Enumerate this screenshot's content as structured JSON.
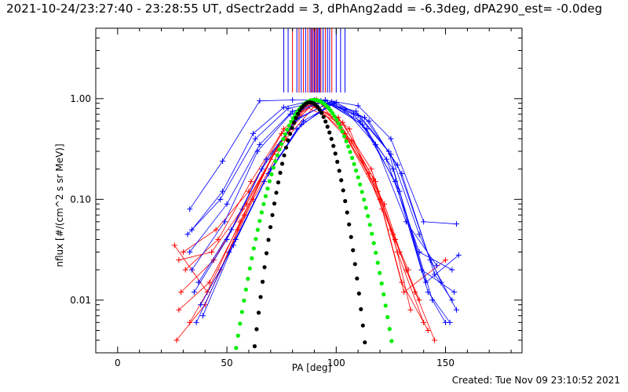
{
  "header": {
    "title": "2021-10-24/23:27:40 - 23:28:55 UT, dSectr2add = 3, dPhAng2add = -6.3deg, dPA290_est= -0.0deg"
  },
  "footer": {
    "created": "Created: Tue Nov 09 23:10:52 2021"
  },
  "chart_data": {
    "type": "scatter",
    "title": "2021-10-24/23:27:40 - 23:28:55 UT, dSectr2add = 3, dPhAng2add = -6.3deg, dPA290_est= -0.0deg",
    "xlabel": "PA [deg]",
    "ylabel": "nflux [#/(cm^2 s sr MeV)]",
    "xlim": [
      -10,
      185
    ],
    "ylim": [
      0.003,
      5.0
    ],
    "yscale": "log",
    "x_ticks": [
      0,
      50,
      100,
      150
    ],
    "x_tick_labels": [
      "0",
      "50",
      "100",
      "150"
    ],
    "y_ticks": [
      0.01,
      0.1,
      1.0
    ],
    "y_tick_labels": [
      "0.01",
      "0.10",
      "1.00"
    ],
    "grid": false,
    "colors": {
      "red": "#ff0000",
      "blue": "#0000ff",
      "green": "#00ee00",
      "black": "#000000"
    },
    "series": [
      {
        "color": "red",
        "style": "lines+plus",
        "curves": [
          {
            "x": [
              27,
              40,
              55,
              70,
              85,
              100,
              115,
              125,
              133
            ],
            "y": [
              0.004,
              0.009,
              0.05,
              0.25,
              0.85,
              0.6,
              0.18,
              0.05,
              0.02
            ]
          },
          {
            "x": [
              28,
              42,
              58,
              72,
              88,
              102,
              118,
              128,
              140
            ],
            "y": [
              0.008,
              0.015,
              0.07,
              0.3,
              0.95,
              0.55,
              0.15,
              0.03,
              0.006
            ]
          },
          {
            "x": [
              30,
              45,
              60,
              75,
              90,
              105,
              120,
              130,
              142
            ],
            "y": [
              0.03,
              0.05,
              0.12,
              0.45,
              0.9,
              0.4,
              0.1,
              0.015,
              0.005
            ]
          },
          {
            "x": [
              29,
              44,
              59,
              74,
              89,
              104,
              119,
              129,
              138
            ],
            "y": [
              0.012,
              0.025,
              0.09,
              0.35,
              0.92,
              0.45,
              0.12,
              0.03,
              0.01
            ]
          },
          {
            "x": [
              31,
              46,
              61,
              76,
              91,
              106,
              121,
              131,
              150
            ],
            "y": [
              0.02,
              0.04,
              0.15,
              0.5,
              0.98,
              0.5,
              0.08,
              0.012,
              0.025
            ]
          },
          {
            "x": [
              26,
              41,
              56,
              71,
              86,
              101,
              116,
              126,
              134
            ],
            "y": [
              0.035,
              0.012,
              0.06,
              0.28,
              0.88,
              0.65,
              0.2,
              0.045,
              0.008
            ]
          },
          {
            "x": [
              33,
              47,
              62,
              77,
              92,
              107,
              122,
              132,
              145
            ],
            "y": [
              0.006,
              0.02,
              0.1,
              0.4,
              0.94,
              0.38,
              0.09,
              0.02,
              0.004
            ]
          },
          {
            "x": [
              28,
              43,
              57,
              73,
              87,
              103,
              117,
              127,
              136
            ],
            "y": [
              0.025,
              0.03,
              0.08,
              0.32,
              0.9,
              0.58,
              0.16,
              0.04,
              0.012
            ]
          }
        ]
      },
      {
        "color": "blue",
        "style": "lines+plus",
        "curves": [
          {
            "x": [
              33,
              48,
              65,
              80,
              95,
              110,
              125,
              140,
              155
            ],
            "y": [
              0.08,
              0.24,
              0.95,
              0.97,
              0.97,
              0.85,
              0.4,
              0.06,
              0.057
            ]
          },
          {
            "x": [
              32,
              47,
              63,
              78,
              93,
              108,
              123,
              138,
              153
            ],
            "y": [
              0.045,
              0.1,
              0.4,
              0.8,
              0.95,
              0.7,
              0.25,
              0.03,
              0.02
            ]
          },
          {
            "x": [
              34,
              49,
              64,
              79,
              94,
              109,
              124,
              139,
              154
            ],
            "y": [
              0.02,
              0.06,
              0.3,
              0.7,
              0.92,
              0.75,
              0.3,
              0.02,
              0.012
            ]
          },
          {
            "x": [
              35,
              50,
              66,
              81,
              96,
              111,
              126,
              141,
              156
            ],
            "y": [
              0.012,
              0.04,
              0.2,
              0.6,
              0.9,
              0.6,
              0.2,
              0.015,
              0.028
            ]
          },
          {
            "x": [
              36,
              51,
              67,
              82,
              97,
              112,
              127,
              142,
              152
            ],
            "y": [
              0.006,
              0.03,
              0.15,
              0.5,
              0.88,
              0.55,
              0.15,
              0.012,
              0.006
            ]
          },
          {
            "x": [
              37,
              52,
              68,
              83,
              98,
              113,
              128,
              143,
              155
            ],
            "y": [
              0.015,
              0.05,
              0.25,
              0.65,
              0.93,
              0.65,
              0.22,
              0.025,
              0.008
            ]
          },
          {
            "x": [
              38,
              53,
              69,
              84,
              99,
              114,
              129,
              144,
              150
            ],
            "y": [
              0.009,
              0.035,
              0.18,
              0.55,
              0.9,
              0.5,
              0.12,
              0.01,
              0.006
            ]
          },
          {
            "x": [
              33,
              50,
              65,
              80,
              95,
              110,
              125,
              138,
              148
            ],
            "y": [
              0.03,
              0.09,
              0.35,
              0.75,
              0.95,
              0.68,
              0.28,
              0.045,
              0.015
            ]
          },
          {
            "x": [
              39,
              54,
              70,
              85,
              100,
              115,
              130,
              145,
              153
            ],
            "y": [
              0.007,
              0.04,
              0.2,
              0.6,
              0.92,
              0.6,
              0.18,
              0.018,
              0.01
            ]
          },
          {
            "x": [
              34,
              48,
              62,
              76,
              90,
              104,
              118,
              132,
              146
            ],
            "y": [
              0.05,
              0.12,
              0.45,
              0.82,
              0.97,
              0.78,
              0.35,
              0.06,
              0.022
            ]
          }
        ]
      },
      {
        "color": "green",
        "style": "dots",
        "model": {
          "center": 90,
          "peak": 0.97,
          "a": 2.85
        },
        "x_range": [
          20,
          148
        ]
      },
      {
        "color": "black",
        "style": "dots",
        "model": {
          "center": 88,
          "peak": 0.92,
          "a": 4.0
        },
        "x_range": [
          42,
          135
        ]
      }
    ],
    "vertical_lines": {
      "x": [
        76,
        78,
        80,
        82,
        83,
        84,
        85,
        86,
        87,
        88,
        88.5,
        89,
        89.5,
        90,
        90.5,
        91,
        91.5,
        92,
        92.5,
        93,
        94,
        95,
        96,
        97,
        98,
        100,
        102,
        104
      ],
      "colors": [
        "blue",
        "blue",
        "red",
        "blue",
        "red",
        "blue",
        "red",
        "blue",
        "red",
        "blue",
        "red",
        "blue",
        "red",
        "blue",
        "red",
        "blue",
        "red",
        "blue",
        "blue",
        "red",
        "blue",
        "red",
        "blue",
        "blue",
        "red",
        "blue",
        "blue",
        "blue"
      ],
      "y_from": 1.15,
      "y_to": 5.0
    }
  }
}
